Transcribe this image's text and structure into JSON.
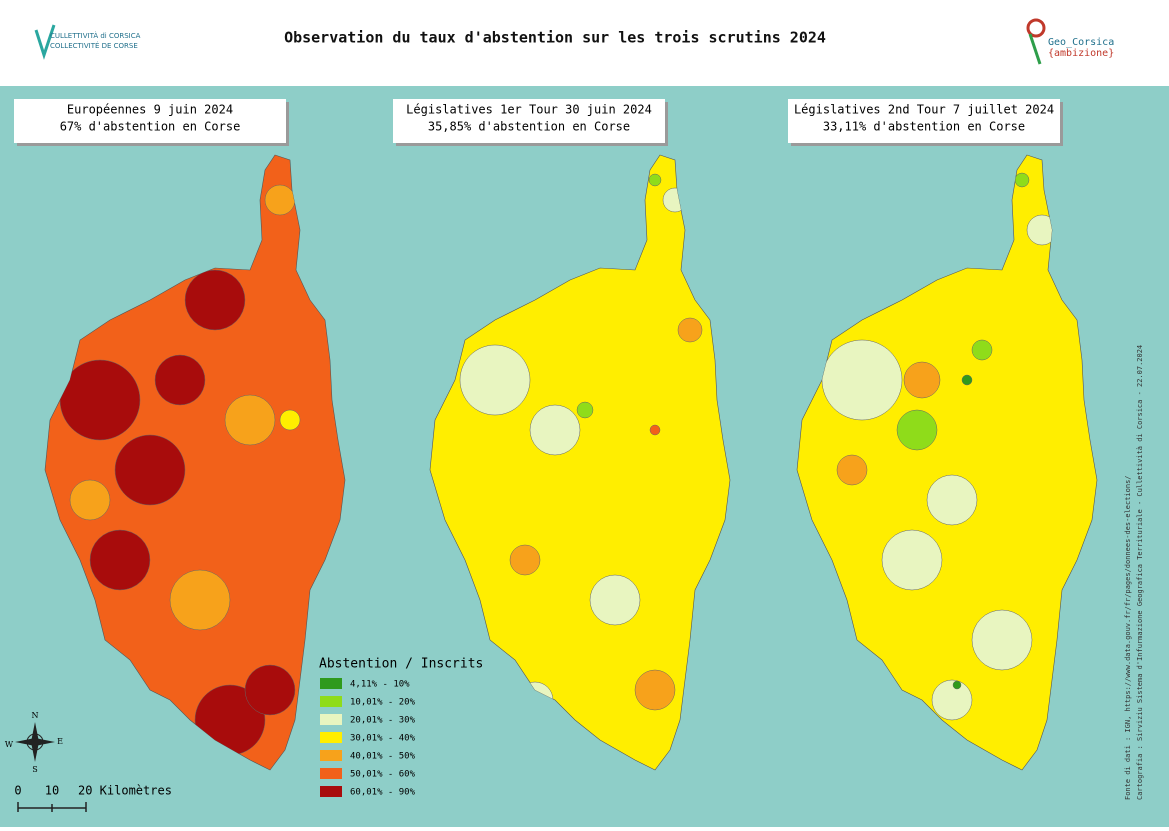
{
  "header": {
    "title": "Observation du taux d'abstention sur les trois scrutins 2024",
    "logo_left": [
      "CULLETTIVITÀ di CORSICA",
      "COLLECTIVITÉ DE CORSE"
    ],
    "logo_right": [
      "Geo_Corsica",
      "{ambizione}"
    ]
  },
  "maps": [
    {
      "title": "Européennes 9 juin 2024",
      "subtitle": "67% d'abstention en Corse"
    },
    {
      "title": "Législatives 1er Tour 30 juin 2024",
      "subtitle": "35,85% d'abstention en Corse"
    },
    {
      "title": "Législatives 2nd Tour 7 juillet 2024",
      "subtitle": "33,11% d'abstention en Corse"
    }
  ],
  "legend": {
    "title": "Abstention / Inscrits",
    "classes": [
      {
        "label": "4,11% - 10%",
        "color": "#2f9a1c"
      },
      {
        "label": "10,01% - 20%",
        "color": "#8fdc1a"
      },
      {
        "label": "20,01% - 30%",
        "color": "#e8f5c0"
      },
      {
        "label": "30,01% - 40%",
        "color": "#ffee00"
      },
      {
        "label": "40,01% - 50%",
        "color": "#f7a21b"
      },
      {
        "label": "50,01% - 60%",
        "color": "#f2611a"
      },
      {
        "label": "60,01% - 90%",
        "color": "#a80c0c"
      }
    ]
  },
  "scale": {
    "labels": [
      "0",
      "10",
      "20 Kilomètres"
    ]
  },
  "compass": [
    "N",
    "E",
    "S",
    "W"
  ],
  "credits": [
    "Fonte di dati : IGN, https://www.data.gouv.fr/fr/pages/donnees-des-elections/",
    "Cartografia : Sirviziu Sistema d'Infurmazione Geografica Territuriale - Cullettività di Corsica - 22.07.2024"
  ]
}
